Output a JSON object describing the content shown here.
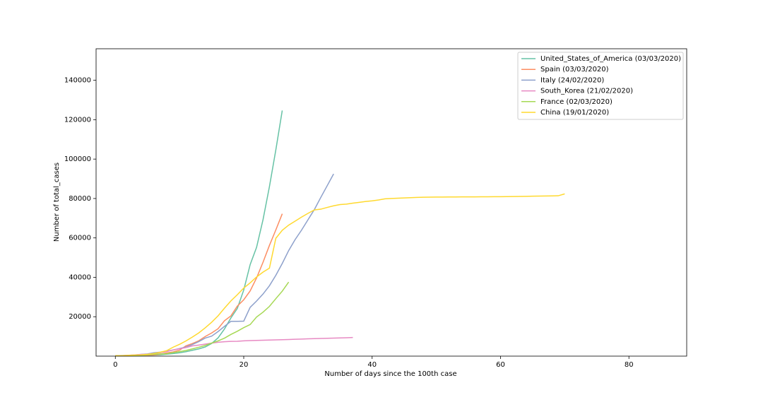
{
  "chart_data": {
    "type": "line",
    "xlabel": "Number of days since the 100th case",
    "ylabel": "Number of total_cases",
    "x": [
      0,
      1,
      2,
      3,
      4,
      5,
      6,
      7,
      8,
      9,
      10,
      11,
      12,
      13,
      14,
      15,
      16,
      17,
      18,
      19,
      20,
      21,
      22,
      23,
      24,
      25,
      26,
      27,
      28,
      29,
      30,
      31,
      32,
      33,
      34,
      35,
      36,
      37,
      38,
      39,
      40,
      41,
      42,
      43,
      44,
      45,
      46,
      47,
      48,
      49,
      50,
      51,
      52,
      53,
      54,
      55,
      56,
      57,
      58,
      59,
      60,
      61,
      62,
      63,
      64,
      65,
      66,
      67,
      68,
      69,
      70
    ],
    "xlim": [
      -3,
      89
    ],
    "xticks": [
      0,
      20,
      40,
      60,
      80
    ],
    "ylim": [
      0,
      156000
    ],
    "yticks": [
      20000,
      40000,
      60000,
      80000,
      100000,
      120000,
      140000
    ],
    "legend": "upper right",
    "series": [
      {
        "name": "United_States_of_America (03/03/2020)",
        "color": "#66c2a5",
        "values": [
          100,
          124,
          158,
          221,
          319,
          435,
          541,
          704,
          994,
          1301,
          1697,
          2247,
          2943,
          3680,
          4663,
          6411,
          9259,
          13789,
          19383,
          24207,
          33546,
          46450,
          55231,
          69194,
          85991,
          104686,
          124686,
          null,
          null,
          null,
          null,
          null,
          null,
          null,
          null,
          null,
          null,
          null,
          null,
          null,
          null,
          null,
          null,
          null,
          null,
          null,
          null,
          null,
          null,
          null,
          null,
          null,
          null,
          null,
          null,
          null,
          null,
          null,
          null,
          null,
          null,
          null,
          null,
          null,
          null,
          null,
          null,
          null,
          null,
          null,
          null
        ]
      },
      {
        "name": "Spain (03/03/2020)",
        "color": "#fc8d62",
        "values": [
          114,
          151,
          200,
          261,
          374,
          430,
          589,
          999,
          1622,
          2128,
          3004,
          5232,
          6391,
          7798,
          9942,
          11748,
          13910,
          17963,
          20410,
          25374,
          28603,
          33089,
          39673,
          47610,
          56188,
          64059,
          72248,
          null,
          null,
          null,
          null,
          null,
          null,
          null,
          null,
          null,
          null,
          null,
          null,
          null,
          null,
          null,
          null,
          null,
          null,
          null,
          null,
          null,
          null,
          null,
          null,
          null,
          null,
          null,
          null,
          null,
          null,
          null,
          null,
          null,
          null,
          null,
          null,
          null,
          null,
          null,
          null,
          null,
          null,
          null,
          null
        ]
      },
      {
        "name": "Italy (24/02/2020)",
        "color": "#8da0cb",
        "values": [
          229,
          322,
          400,
          650,
          888,
          1128,
          1694,
          2036,
          2502,
          3089,
          3858,
          4636,
          5883,
          7375,
          9172,
          10149,
          12462,
          15113,
          17660,
          17660,
          17750,
          24747,
          27980,
          31506,
          35713,
          41035,
          47021,
          53578,
          59138,
          63927,
          69176,
          74386,
          80539,
          86498,
          92472,
          null,
          null,
          null,
          null,
          null,
          null,
          null,
          null,
          null,
          null,
          null,
          null,
          null,
          null,
          null,
          null,
          null,
          null,
          null,
          null,
          null,
          null,
          null,
          null,
          null,
          null,
          null,
          null,
          null,
          null,
          null,
          null,
          null,
          null,
          null,
          null
        ]
      },
      {
        "name": "South_Korea (21/02/2020)",
        "color": "#e78ac3",
        "values": [
          104,
          204,
          433,
          602,
          833,
          977,
          1261,
          1766,
          2337,
          3150,
          3736,
          4335,
          5186,
          5621,
          6088,
          6593,
          7041,
          7314,
          7478,
          7513,
          7755,
          7869,
          7979,
          8086,
          8162,
          8236,
          8320,
          8413,
          8565,
          8652,
          8799,
          8897,
          8961,
          9037,
          9137,
          9241,
          9332,
          9478,
          null,
          null,
          null,
          null,
          null,
          null,
          null,
          null,
          null,
          null,
          null,
          null,
          null,
          null,
          null,
          null,
          null,
          null,
          null,
          null,
          null,
          null,
          null,
          null,
          null,
          null,
          null,
          null,
          null,
          null,
          null,
          null,
          null
        ]
      },
      {
        "name": "France (02/03/2020)",
        "color": "#a6d854",
        "values": [
          130,
          191,
          212,
          285,
          423,
          613,
          949,
          1126,
          1209,
          1784,
          2281,
          2876,
          3661,
          4499,
          5423,
          6633,
          7730,
          9134,
          10995,
          12612,
          14459,
          16018,
          19856,
          22302,
          25233,
          29155,
          32964,
          37575,
          null,
          null,
          null,
          null,
          null,
          null,
          null,
          null,
          null,
          null,
          null,
          null,
          null,
          null,
          null,
          null,
          null,
          null,
          null,
          null,
          null,
          null,
          null,
          null,
          null,
          null,
          null,
          null,
          null,
          null,
          null,
          null,
          null,
          null,
          null,
          null,
          null,
          null,
          null,
          null,
          null,
          null,
          null
        ]
      },
      {
        "name": "China (19/01/2020)",
        "color": "#ffd92f",
        "values": [
          216,
          235,
          386,
          526,
          623,
          882,
          1323,
          1988,
          2775,
          4528,
          5994,
          7711,
          9692,
          11791,
          14380,
          17205,
          20438,
          24324,
          28018,
          31161,
          34546,
          37198,
          40171,
          42638,
          44653,
          59804,
          63851,
          66492,
          68500,
          70548,
          72436,
          74185,
          74576,
          75465,
          76288,
          76936,
          77150,
          77658,
          78064,
          78497,
          78824,
          79251,
          79824,
          80026,
          80151,
          80270,
          80409,
          80552,
          80651,
          80695,
          80735,
          80754,
          80778,
          80793,
          80813,
          80824,
          80844,
          80860,
          80881,
          80894,
          80928,
          80967,
          81008,
          81054,
          81093,
          81171,
          81218,
          81285,
          81340,
          81394,
          82341
        ]
      }
    ]
  }
}
